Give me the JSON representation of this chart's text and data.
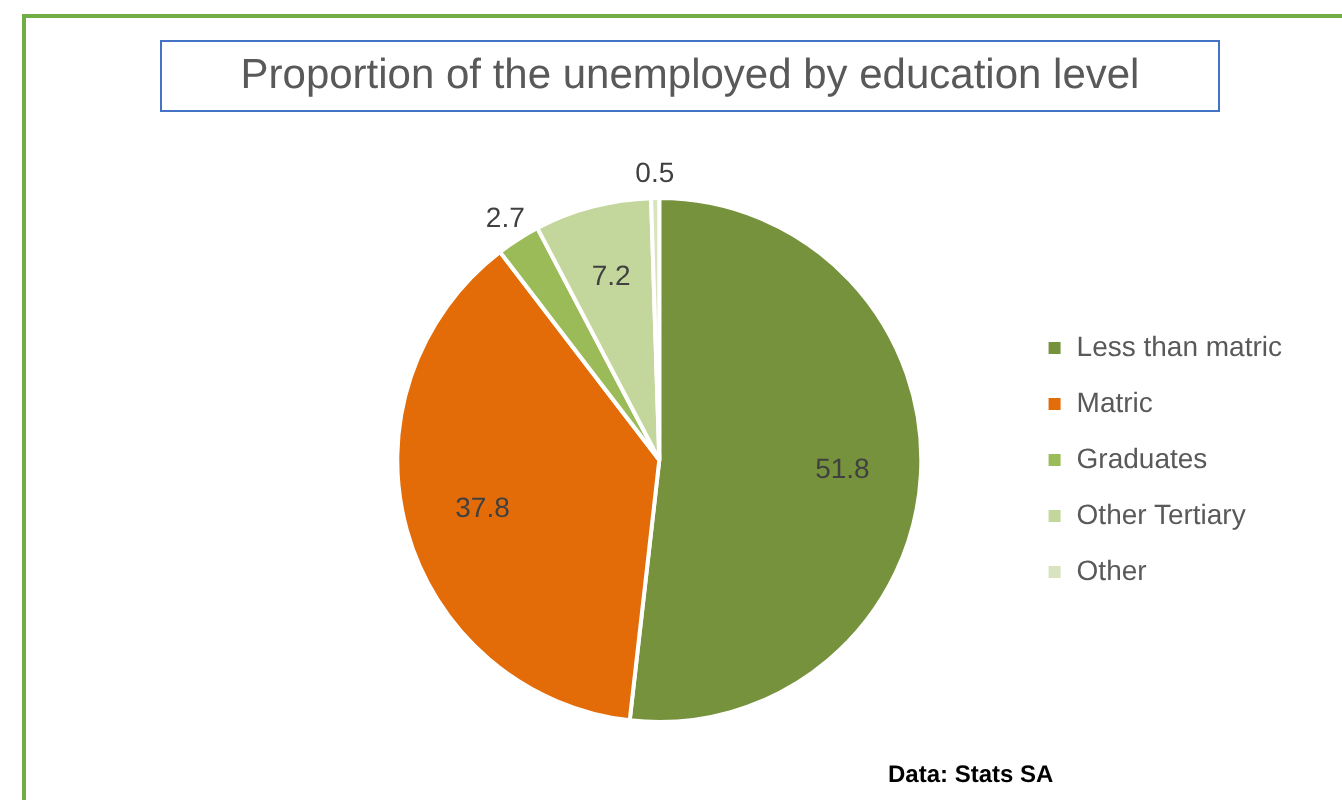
{
  "chart_data": {
    "type": "pie",
    "title": "Proportion of the unemployed by education level",
    "categories": [
      "Less than matric",
      "Matric",
      "Graduates",
      "Other Tertiary",
      "Other"
    ],
    "values": [
      51.8,
      37.8,
      2.7,
      7.2,
      0.5
    ],
    "colors": [
      "#76923c",
      "#e36c09",
      "#9bbb59",
      "#c3d69b",
      "#d7e4bd"
    ],
    "data_labels": true,
    "legend": "right",
    "annotations": [
      "Data: Stats SA"
    ]
  }
}
